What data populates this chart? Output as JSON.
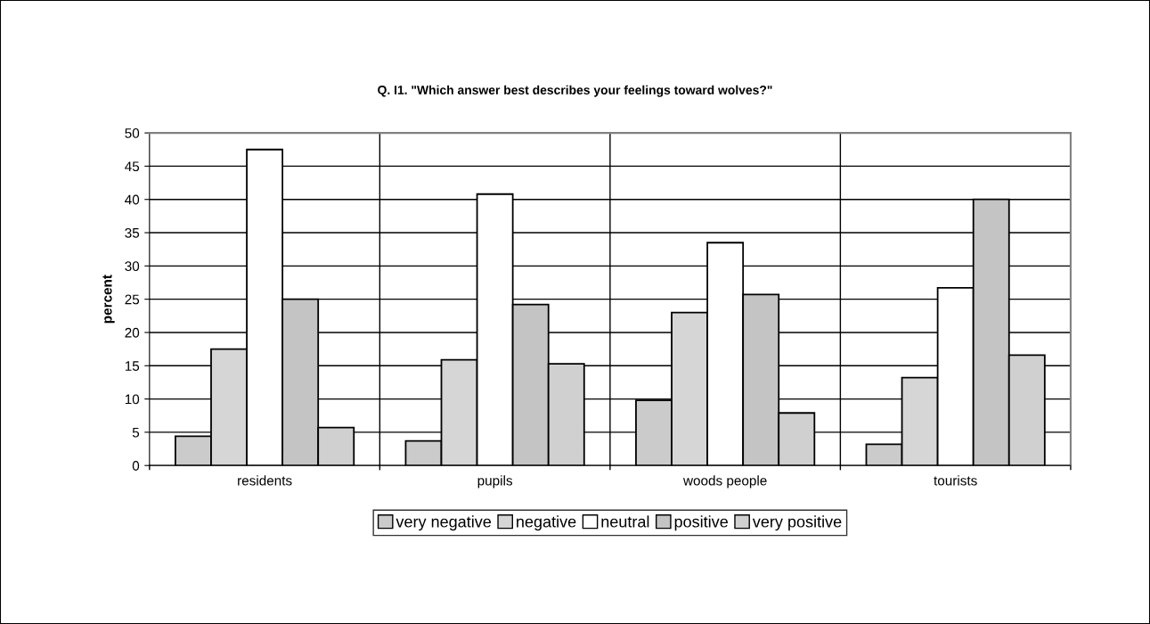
{
  "chart_data": {
    "type": "bar",
    "title": "Q. I1. \"Which answer best describes your feelings toward wolves?\"",
    "ylabel": "percent",
    "categories": [
      "residents",
      "pupils",
      "woods people",
      "tourists"
    ],
    "series": [
      {
        "name": "very negative",
        "color": "#cbcbcb",
        "values": [
          4.4,
          3.7,
          9.8,
          3.2
        ]
      },
      {
        "name": "negative",
        "color": "#d6d6d6",
        "values": [
          17.5,
          15.9,
          23.0,
          13.2
        ]
      },
      {
        "name": "neutral",
        "color": "#ffffff",
        "values": [
          47.5,
          40.8,
          33.5,
          26.7
        ]
      },
      {
        "name": "positive",
        "color": "#c4c4c4",
        "values": [
          25.0,
          24.2,
          25.7,
          40.0
        ]
      },
      {
        "name": "very positive",
        "color": "#d0d0d0",
        "values": [
          5.7,
          15.3,
          7.9,
          16.6
        ]
      }
    ],
    "ylim": [
      0,
      50
    ],
    "yticks": [
      0,
      5,
      10,
      15,
      20,
      25,
      30,
      35,
      40,
      45,
      50
    ],
    "grid": true,
    "legend": "bottom"
  }
}
